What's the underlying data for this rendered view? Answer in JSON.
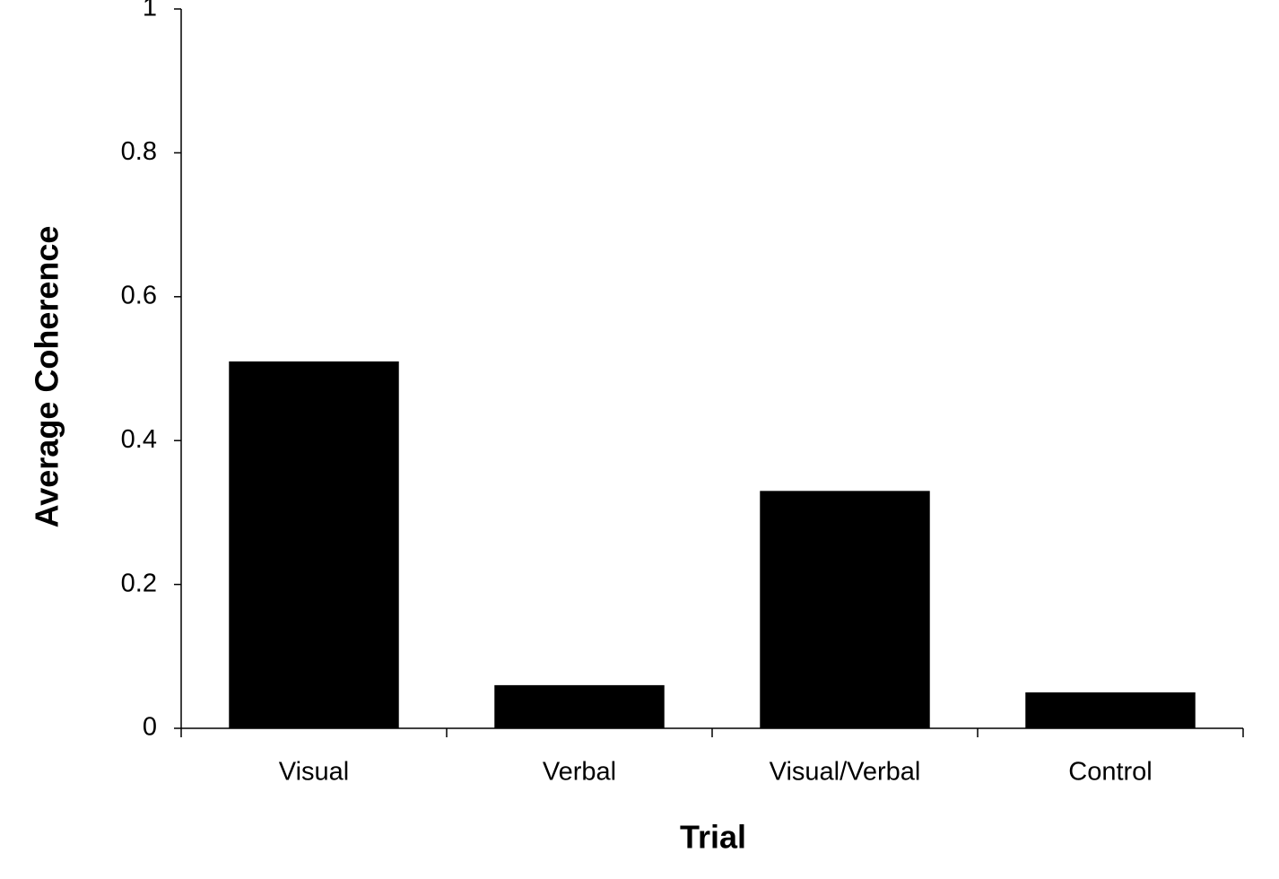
{
  "chart_data": {
    "type": "bar",
    "x_label": "Trial",
    "y_label": "Average Coherence",
    "categories": [
      "Visual",
      "Verbal",
      "Visual/Verbal",
      "Control"
    ],
    "values": [
      0.51,
      0.06,
      0.33,
      0.05
    ],
    "color": "#000000",
    "ylim": [
      0,
      1
    ],
    "yticks": [
      0,
      0.2,
      0.4,
      0.6,
      0.8,
      1
    ],
    "grid": false
  }
}
